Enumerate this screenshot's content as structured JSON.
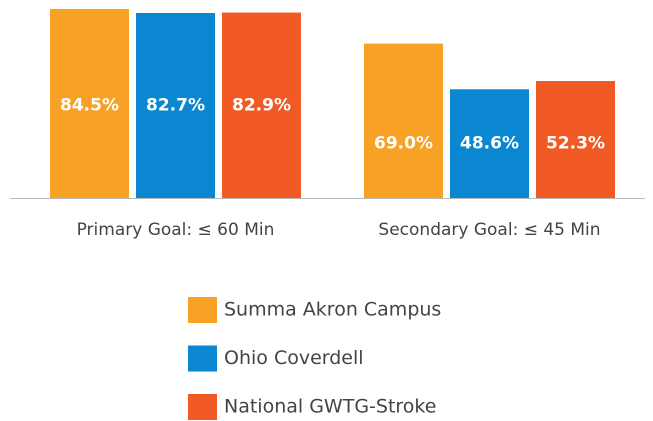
{
  "chart_data": {
    "type": "bar",
    "categories": [
      "Primary Goal: ≤ 60 Min",
      "Secondary Goal: ≤ 45 Min"
    ],
    "series": [
      {
        "name": "Summa Akron Campus",
        "color": "#f7a125",
        "values": [
          84.5,
          69.0
        ],
        "value_labels": [
          "84.5%",
          "69.0%"
        ]
      },
      {
        "name": "Ohio Coverdell",
        "color": "#0a87d0",
        "values": [
          82.7,
          48.6
        ],
        "value_labels": [
          "82.7%",
          "48.6%"
        ]
      },
      {
        "name": "National GWTG-Stroke",
        "color": "#f15a24",
        "values": [
          82.9,
          52.3
        ],
        "value_labels": [
          "82.9%",
          "52.3%"
        ]
      }
    ]
  }
}
